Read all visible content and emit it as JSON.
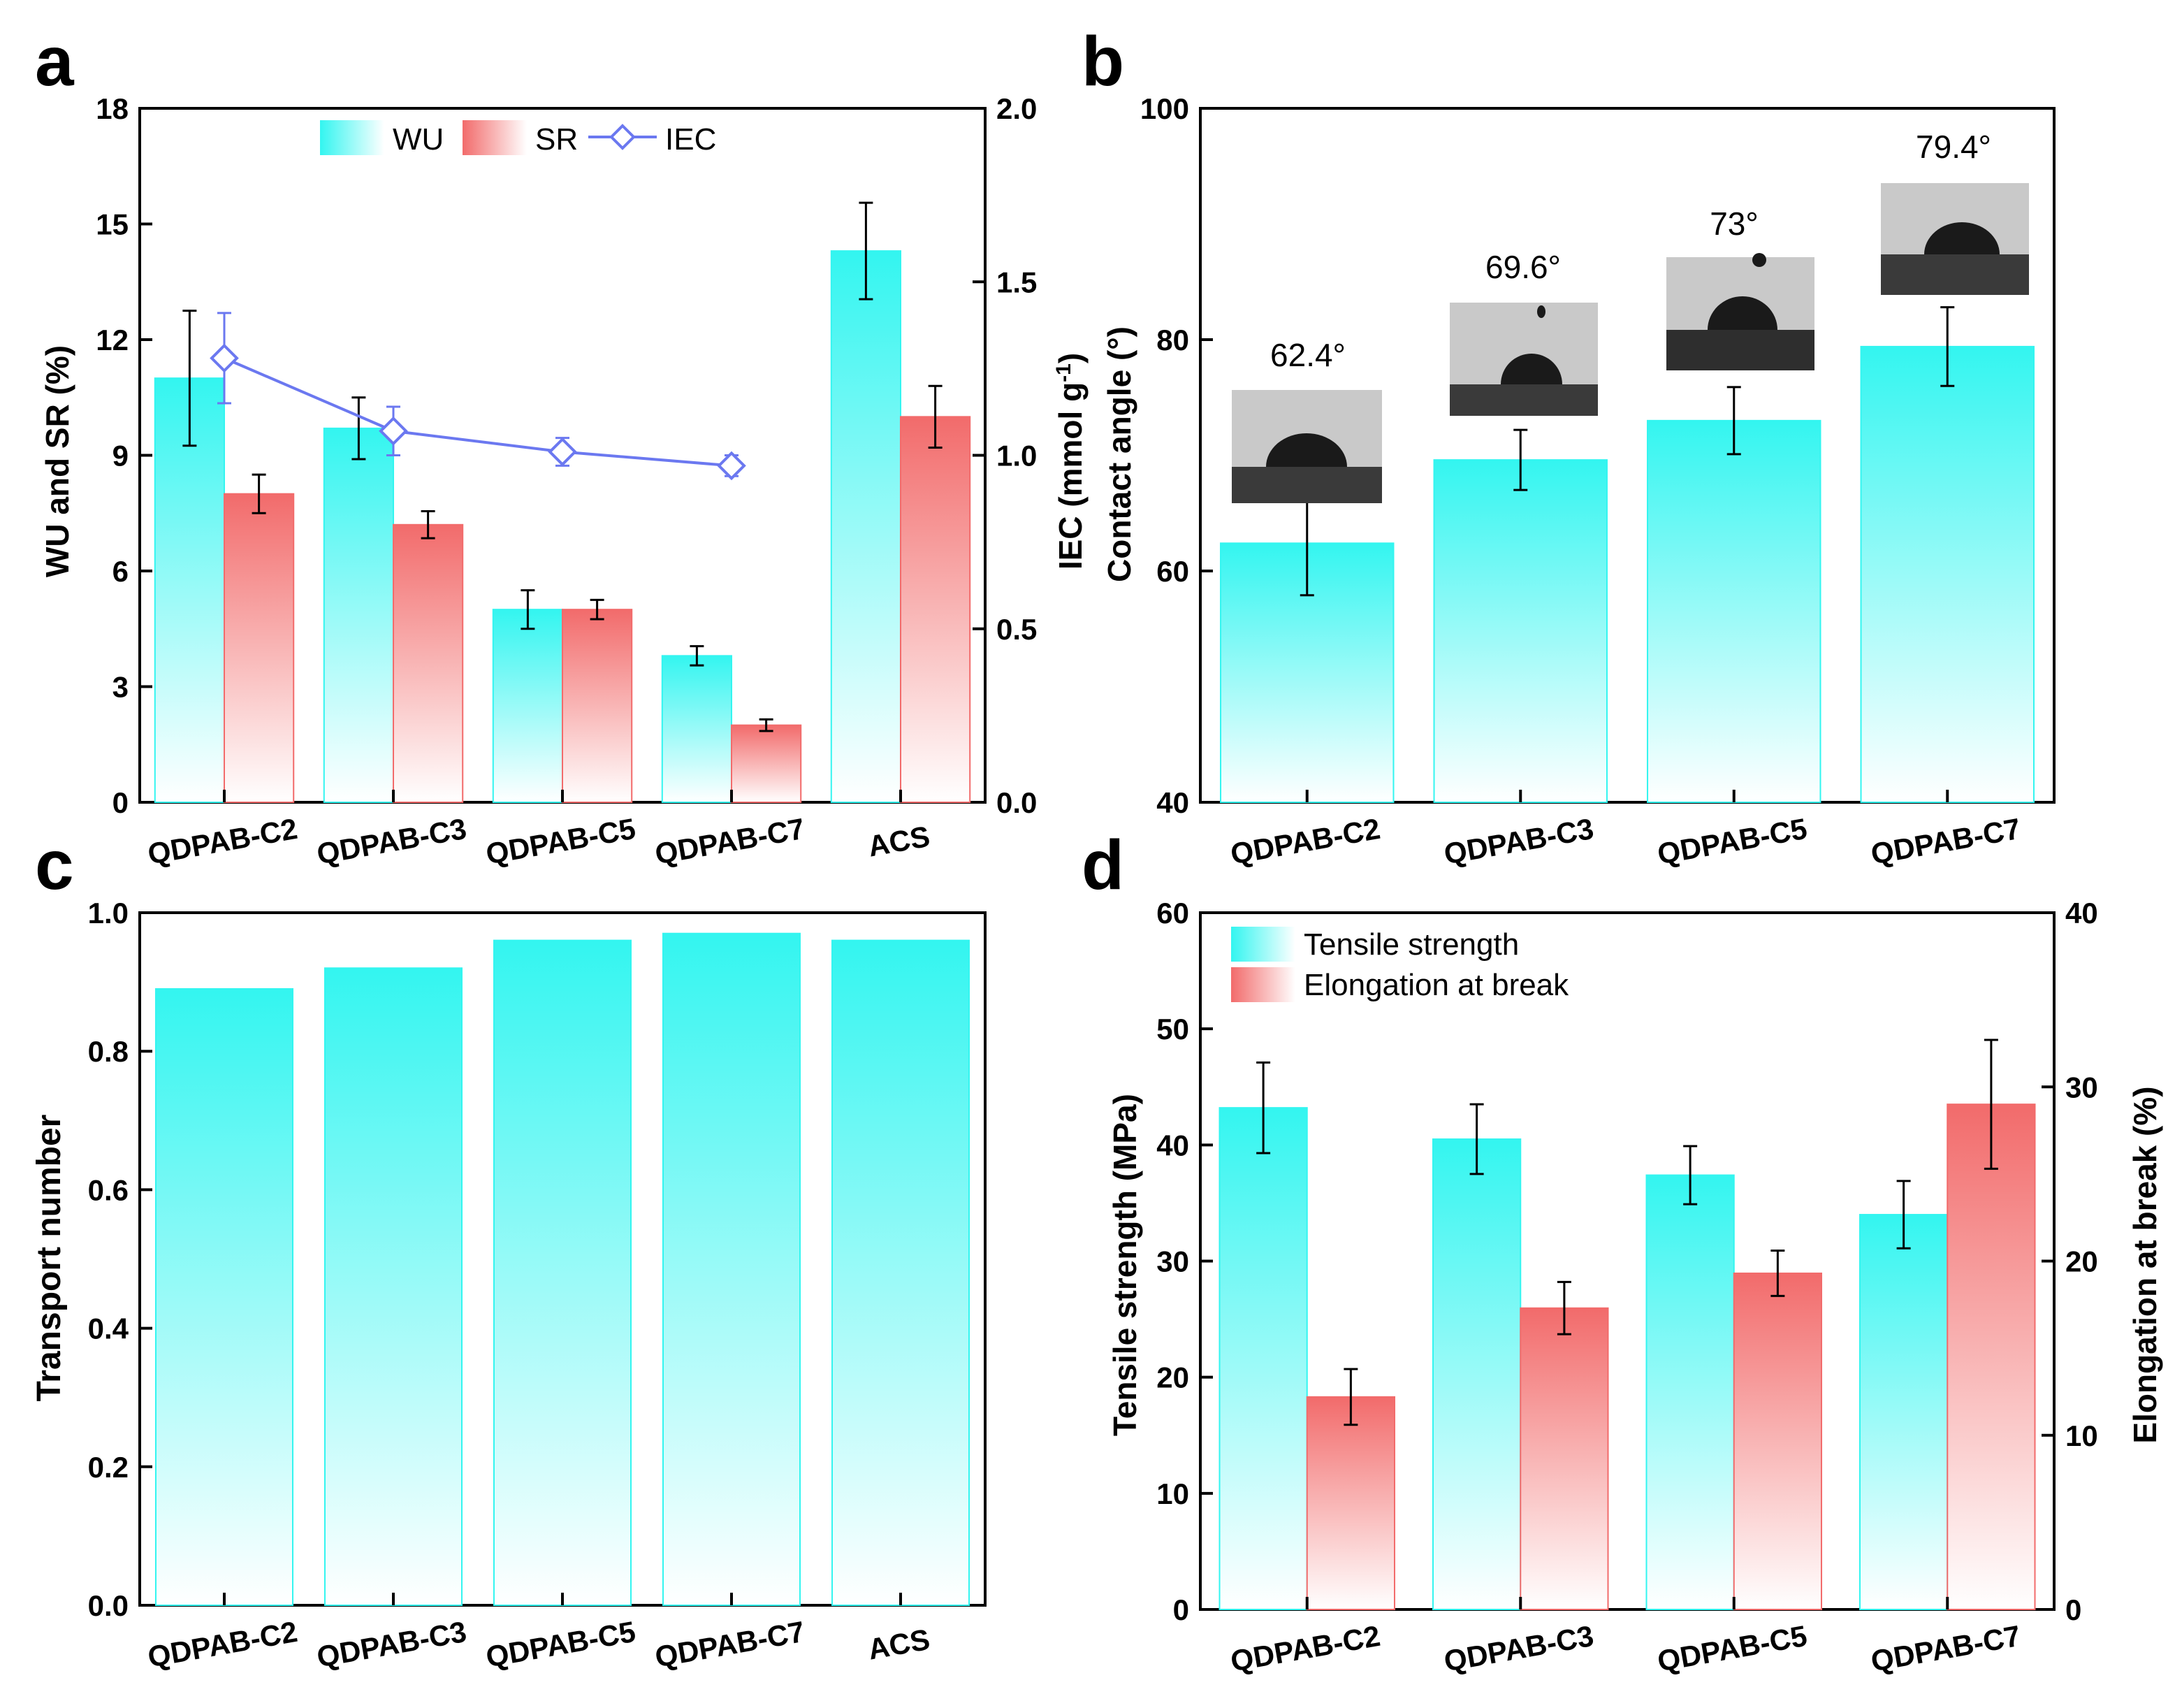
{
  "colors": {
    "cyan": "#33f5f0",
    "red": "#f26b6b",
    "blue": "#6b78f0",
    "axis": "#000000"
  },
  "chart_data": [
    {
      "panel": "a",
      "type": "bar",
      "categories": [
        "QDPAB-C2",
        "QDPAB-C3",
        "QDPAB-C5",
        "QDPAB-C7",
        "ACS"
      ],
      "ylabel": "WU and SR (%)",
      "ylim": [
        0,
        18
      ],
      "yticks": [
        "0",
        "3",
        "6",
        "9",
        "12",
        "15",
        "18"
      ],
      "y2label": "IEC (mmol g-1)",
      "y2label_parts": {
        "pre": "IEC (mmol g",
        "sup": "-1",
        "post": ")"
      },
      "y2lim": [
        0,
        2
      ],
      "y2ticks": [
        "0.0",
        "0.5",
        "1.0",
        "1.5",
        "2.0"
      ],
      "legend_position": "top-center",
      "series": [
        {
          "name": "WU",
          "kind": "bar",
          "color": "cyan",
          "values": [
            11.0,
            9.7,
            5.0,
            3.8,
            14.3
          ],
          "errors": [
            1.75,
            0.8,
            0.5,
            0.25,
            1.25
          ]
        },
        {
          "name": "SR",
          "kind": "bar",
          "color": "red",
          "values": [
            8.0,
            7.2,
            5.0,
            2.0,
            10.0
          ],
          "errors": [
            0.5,
            0.35,
            0.25,
            0.15,
            0.8
          ]
        },
        {
          "name": "IEC",
          "kind": "line",
          "axis": "right",
          "color": "blue",
          "values": [
            1.28,
            1.07,
            1.01,
            0.97,
            null
          ],
          "errors": [
            0.13,
            0.07,
            0.04,
            0.03,
            null
          ]
        }
      ]
    },
    {
      "panel": "b",
      "type": "bar",
      "categories": [
        "QDPAB-C2",
        "QDPAB-C3",
        "QDPAB-C5",
        "QDPAB-C7"
      ],
      "ylabel": "Contact angle (°)",
      "ylim": [
        40,
        100
      ],
      "yticks": [
        "40",
        "60",
        "80",
        "100"
      ],
      "series": [
        {
          "name": "Contact angle",
          "color": "cyan",
          "values": [
            62.4,
            69.6,
            73.0,
            79.4
          ],
          "errors": [
            4.5,
            2.6,
            2.9,
            3.4
          ]
        }
      ],
      "annotations": [
        "62.4°",
        "69.6°",
        "73°",
        "79.4°"
      ]
    },
    {
      "panel": "c",
      "type": "bar",
      "categories": [
        "QDPAB-C2",
        "QDPAB-C3",
        "QDPAB-C5",
        "QDPAB-C7",
        "ACS"
      ],
      "ylabel": "Transport number",
      "ylim": [
        0,
        1.0
      ],
      "yticks": [
        "0.0",
        "0.2",
        "0.4",
        "0.6",
        "0.8",
        "1.0"
      ],
      "series": [
        {
          "name": "Transport number",
          "color": "cyan",
          "values": [
            0.89,
            0.92,
            0.96,
            0.97,
            0.96
          ]
        }
      ]
    },
    {
      "panel": "d",
      "type": "bar",
      "categories": [
        "QDPAB-C2",
        "QDPAB-C3",
        "QDPAB-C5",
        "QDPAB-C7"
      ],
      "ylabel": "Tensile strength (MPa)",
      "ylim": [
        0,
        60
      ],
      "yticks": [
        "0",
        "10",
        "20",
        "30",
        "40",
        "50",
        "60"
      ],
      "y2label": "Elongation at break (%)",
      "y2lim": [
        0,
        40
      ],
      "y2ticks": [
        "0",
        "10",
        "20",
        "30",
        "40"
      ],
      "legend_position": "top-left",
      "series": [
        {
          "name": "Tensile strength",
          "kind": "bar",
          "color": "cyan",
          "values": [
            43.2,
            40.5,
            37.4,
            34.0
          ],
          "errors": [
            3.9,
            3.0,
            2.5,
            2.9
          ]
        },
        {
          "name": "Elongation at break",
          "kind": "bar",
          "axis": "right",
          "color": "red",
          "values": [
            12.2,
            17.3,
            19.3,
            29.0
          ],
          "errors": [
            1.6,
            1.5,
            1.3,
            3.7
          ]
        }
      ]
    }
  ]
}
